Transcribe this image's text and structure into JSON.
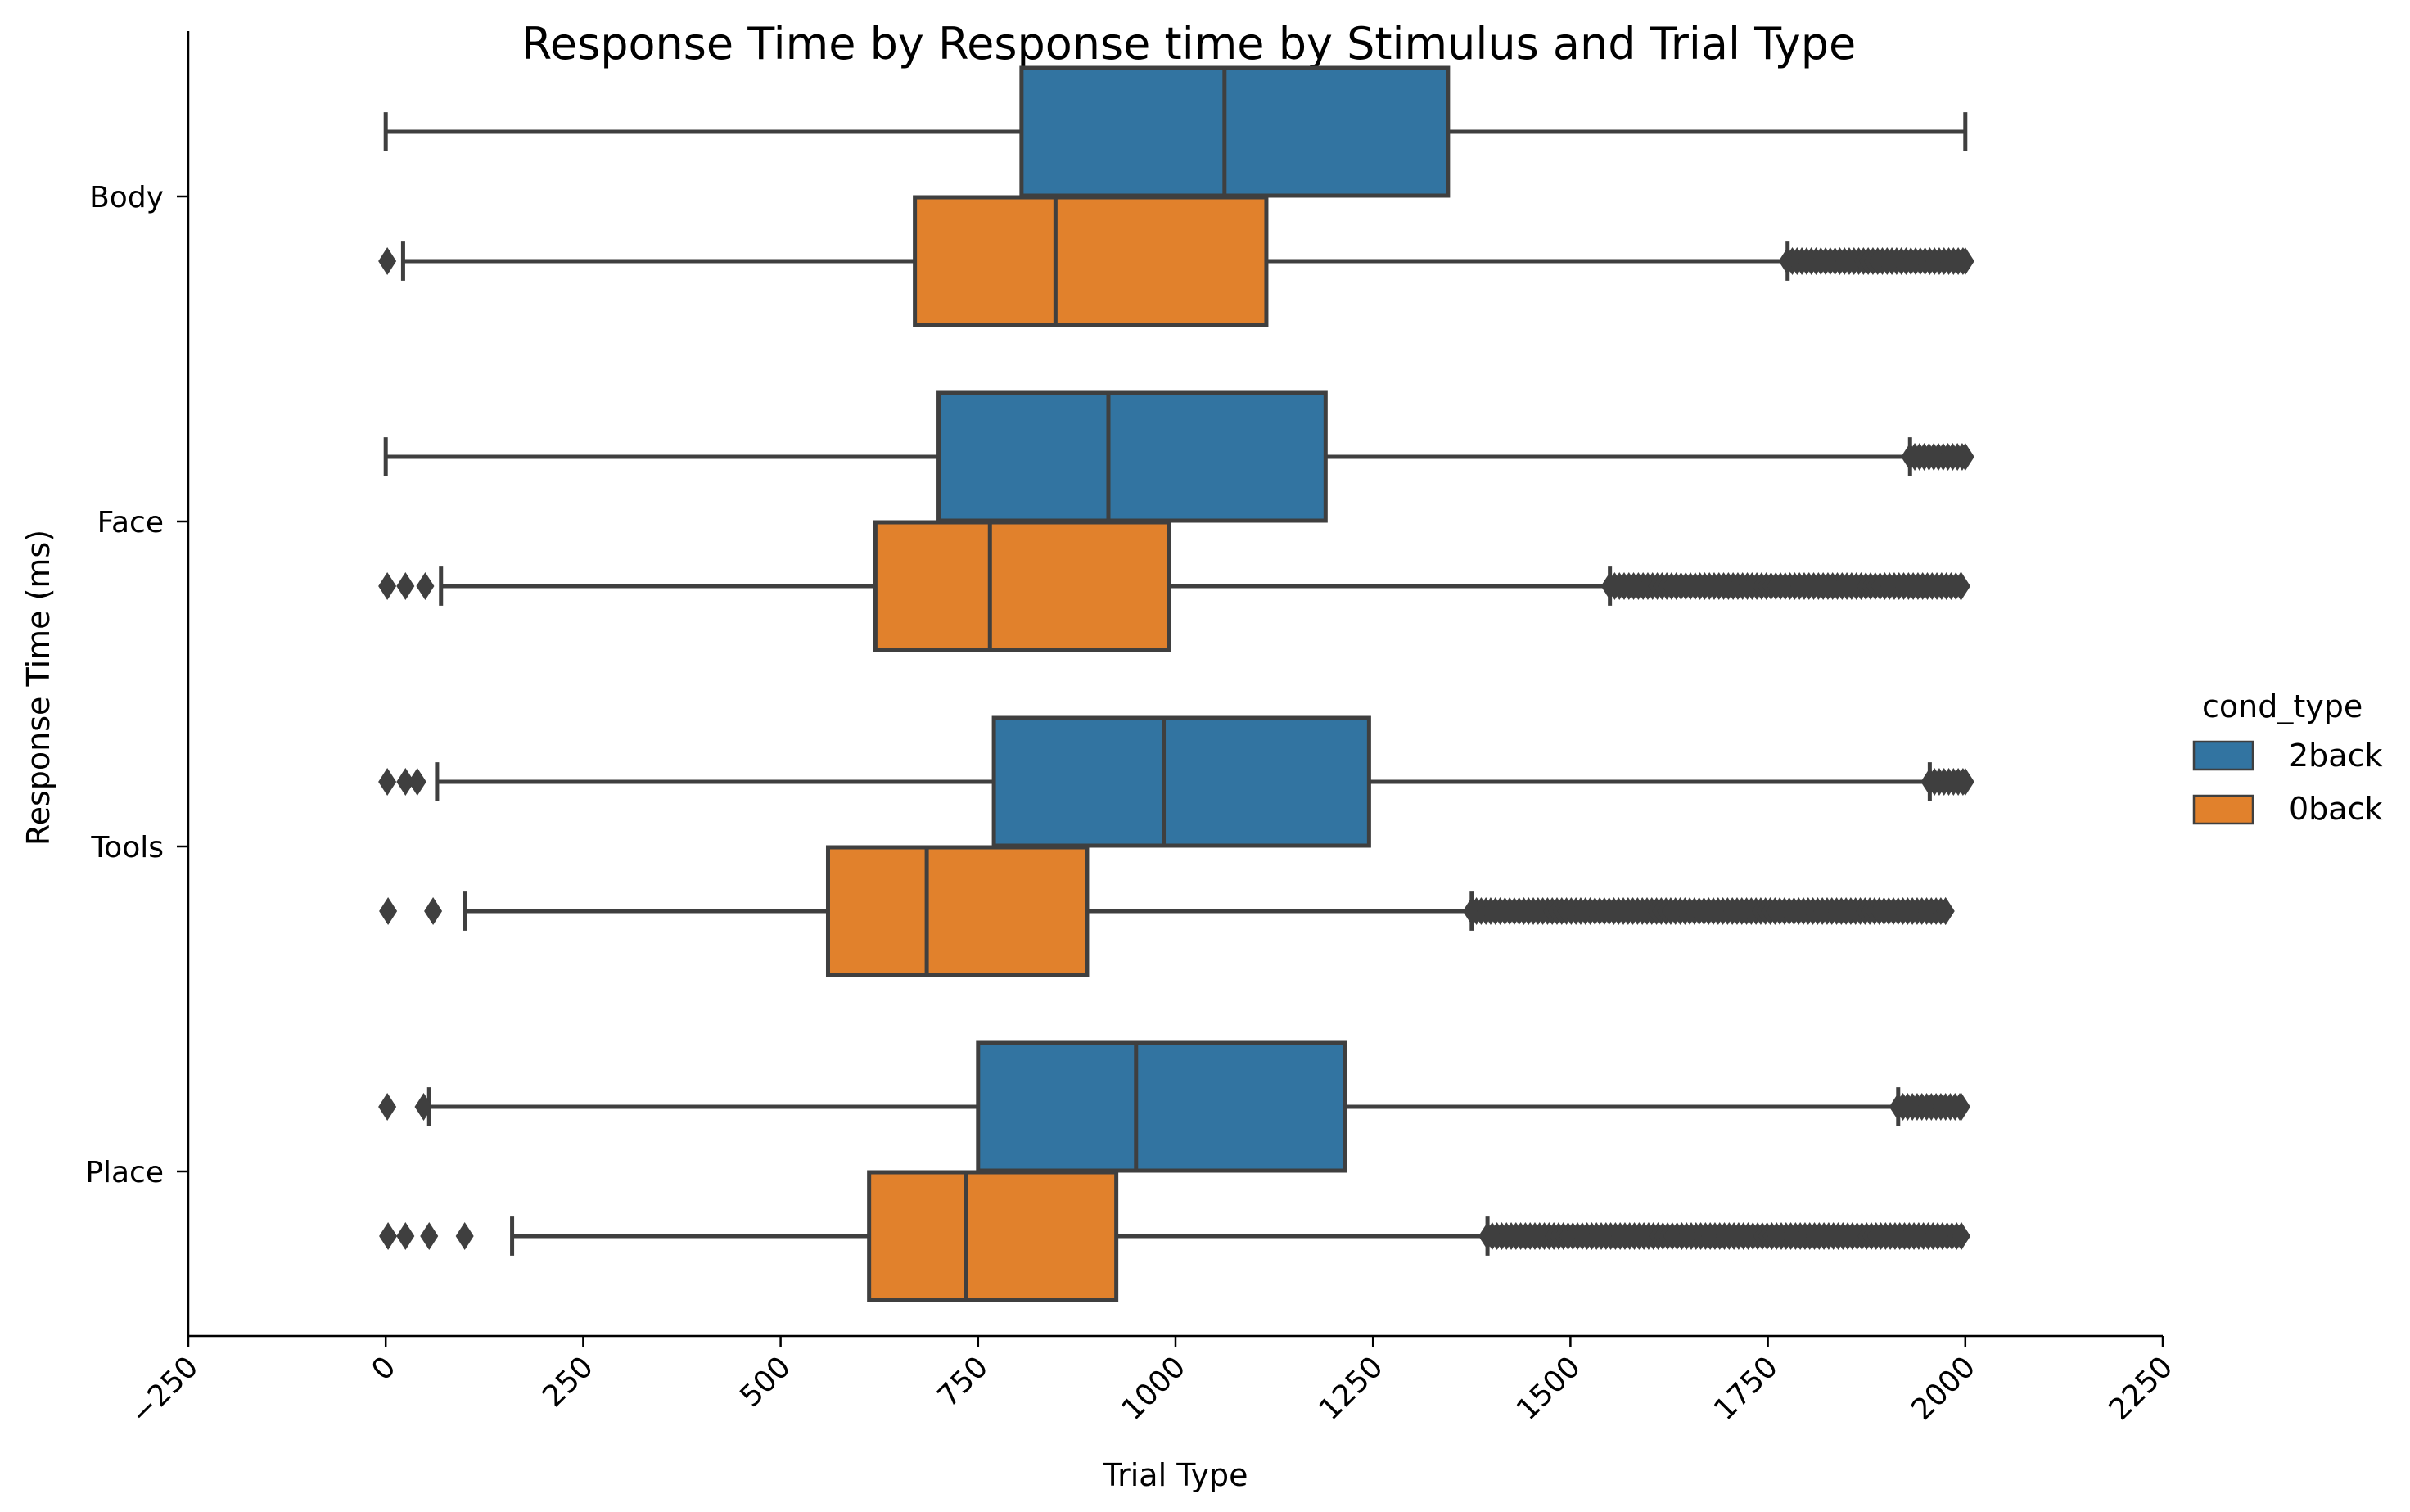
{
  "chart_data": {
    "type": "boxplot-horizontal",
    "title": "Response Time by Response time by Stimulus and Trial Type",
    "xlabel": "Trial Type",
    "ylabel": "Response Time (ms)",
    "xlim": [
      -250,
      2250
    ],
    "xticks": [
      "-250",
      "0",
      "250",
      "500",
      "750",
      "1000",
      "1250",
      "1500",
      "1750",
      "2000",
      "2250"
    ],
    "categories": [
      "Body",
      "Face",
      "Tools",
      "Place"
    ],
    "legend": {
      "title": "cond_type",
      "position": "right",
      "entries": [
        "2back",
        "0back"
      ]
    },
    "colors": {
      "2back": "#3274a1",
      "0back": "#e1812c",
      "edge": "#3f3f3f"
    },
    "series": [
      {
        "name": "2back",
        "boxes": [
          {
            "category": "Body",
            "whislo": 0,
            "q1": 805,
            "med": 1062,
            "q3": 1345,
            "whishi": 2000,
            "fliers": [],
            "flier_band": null
          },
          {
            "category": "Face",
            "whislo": 0,
            "q1": 700,
            "med": 915,
            "q3": 1190,
            "whishi": 1930,
            "fliers": [],
            "flier_band": [
              1930,
              2000
            ]
          },
          {
            "category": "Tools",
            "whislo": 65,
            "q1": 770,
            "med": 985,
            "q3": 1245,
            "whishi": 1955,
            "fliers": [
              2,
              25,
              40
            ],
            "flier_band": [
              1955,
              2000
            ]
          },
          {
            "category": "Place",
            "whislo": 55,
            "q1": 750,
            "med": 950,
            "q3": 1215,
            "whishi": 1915,
            "fliers": [
              2,
              48
            ],
            "flier_band": [
              1915,
              1995
            ]
          }
        ]
      },
      {
        "name": "0back",
        "boxes": [
          {
            "category": "Body",
            "whislo": 22,
            "q1": 670,
            "med": 848,
            "q3": 1115,
            "whishi": 1775,
            "fliers": [
              2
            ],
            "flier_band": [
              1775,
              2000
            ]
          },
          {
            "category": "Face",
            "whislo": 70,
            "q1": 620,
            "med": 765,
            "q3": 992,
            "whishi": 1550,
            "fliers": [
              2,
              25,
              50
            ],
            "flier_band": [
              1550,
              1995
            ]
          },
          {
            "category": "Tools",
            "whislo": 100,
            "q1": 560,
            "med": 685,
            "q3": 888,
            "whishi": 1375,
            "fliers": [
              3,
              60
            ],
            "flier_band": [
              1375,
              1975
            ]
          },
          {
            "category": "Place",
            "whislo": 160,
            "q1": 612,
            "med": 735,
            "q3": 925,
            "whishi": 1395,
            "fliers": [
              3,
              25,
              55,
              100
            ],
            "flier_band": [
              1395,
              1995
            ]
          }
        ]
      }
    ]
  }
}
